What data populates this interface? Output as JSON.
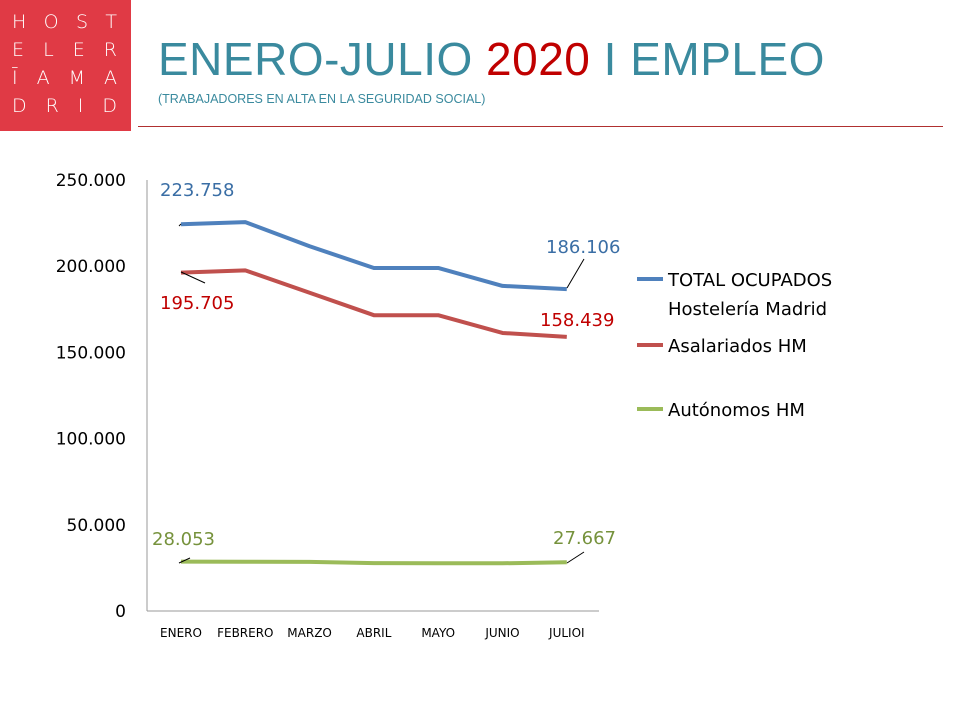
{
  "logo": {
    "rows": [
      [
        "H",
        "O",
        "S",
        "T"
      ],
      [
        "E",
        "L",
        "E",
        "R"
      ],
      [
        "Ī",
        "A",
        "M",
        "A"
      ],
      [
        "D",
        "R",
        "I",
        "D"
      ]
    ]
  },
  "header": {
    "title_main": "ENERO-JULIO ",
    "title_year": "2020",
    "title_rest": " I EMPLEO",
    "subtitle": "(TRABAJADORES EN ALTA EN LA SEGURIDAD SOCIAL)"
  },
  "chart_data": {
    "type": "line",
    "categories": [
      "ENERO",
      "FEBRERO",
      "MARZO",
      "ABRIL",
      "MAYO",
      "JUNIO",
      "JULIOI"
    ],
    "ylim": [
      0,
      250000
    ],
    "yticks": [
      0,
      50000,
      100000,
      150000,
      200000,
      250000
    ],
    "ytick_labels": [
      "0",
      "50.000",
      "100.000",
      "150.000",
      "200.000",
      "250.000"
    ],
    "grid": false,
    "legend_position": "right",
    "series": [
      {
        "name": "TOTAL OCUPADOS Hostelería Madrid",
        "legend_lines": [
          "TOTAL OCUPADOS",
          "Hostelería Madrid"
        ],
        "color": "#4f81bd",
        "values": [
          223758,
          225000,
          211000,
          198400,
          198400,
          188000,
          186106
        ],
        "first_label": "223.758",
        "last_label": "186.106"
      },
      {
        "name": "Asalariados HM",
        "legend_lines": [
          "Asalariados HM"
        ],
        "color": "#c0504d",
        "values": [
          195705,
          197000,
          184000,
          171000,
          171000,
          160700,
          158439
        ],
        "first_label": "195.705",
        "last_label": "158.439"
      },
      {
        "name": "Autónomos HM",
        "legend_lines": [
          "Autónomos HM"
        ],
        "color": "#9bbb59",
        "values": [
          28053,
          28000,
          27900,
          27200,
          27100,
          27100,
          27667
        ],
        "first_label": "28.053",
        "last_label": "27.667"
      }
    ]
  }
}
